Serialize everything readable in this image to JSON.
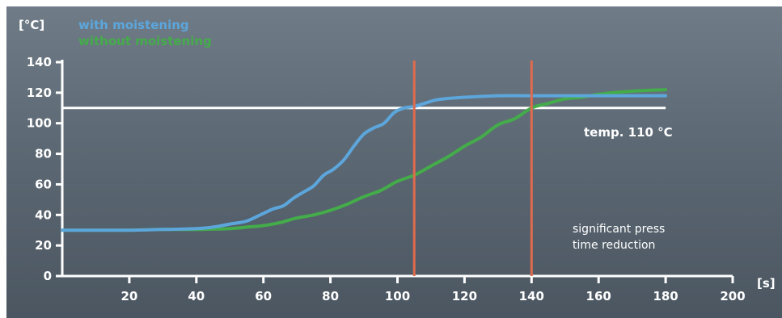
{
  "chart_data": {
    "type": "line",
    "xlabel": "[s]",
    "ylabel": "[°C]",
    "xlim": [
      0,
      200
    ],
    "ylim": [
      0,
      140
    ],
    "xticks": [
      20,
      40,
      60,
      80,
      100,
      120,
      140,
      160,
      180,
      200
    ],
    "yticks": [
      0,
      20,
      40,
      60,
      80,
      100,
      120,
      140
    ],
    "grid": false,
    "legend_position": "top-left",
    "series": [
      {
        "name": "with moistening",
        "color": "#5ca6dc",
        "x": [
          0,
          10,
          20,
          30,
          40,
          45,
          50,
          55,
          60,
          63,
          66,
          69,
          72,
          75,
          78,
          81,
          84,
          87,
          90,
          93,
          96,
          99,
          102,
          105,
          108,
          111,
          114,
          120,
          130,
          140,
          160,
          180
        ],
        "y": [
          30,
          30,
          30,
          30.5,
          31,
          32,
          34,
          36,
          41,
          44,
          46,
          51,
          55,
          59,
          66,
          70,
          76,
          85,
          93,
          97,
          100,
          107,
          110,
          111,
          113,
          115,
          116,
          117,
          118,
          118,
          118,
          118
        ]
      },
      {
        "name": "without moistening",
        "color": "#44ac4a",
        "x": [
          0,
          10,
          20,
          30,
          40,
          50,
          55,
          60,
          65,
          70,
          75,
          80,
          85,
          90,
          95,
          100,
          105,
          110,
          115,
          120,
          125,
          130,
          135,
          140,
          145,
          150,
          155,
          160,
          170,
          180
        ],
        "y": [
          30,
          30,
          30,
          30.5,
          30.5,
          31,
          32,
          33,
          35,
          38,
          40,
          43,
          47,
          52,
          56,
          62,
          66,
          72,
          78,
          85,
          91,
          99,
          103,
          110,
          113,
          116,
          117,
          119,
          121,
          122
        ]
      }
    ],
    "reference_line": {
      "value": 110,
      "color": "#ffffff",
      "label": "temp. 110 °C"
    },
    "markers": [
      {
        "x": 105,
        "color": "#e06a4e"
      },
      {
        "x": 140,
        "color": "#e06a4e"
      }
    ],
    "annotation": "significant press time reduction"
  },
  "annotation_lines": [
    "significant press",
    "time reduction"
  ]
}
